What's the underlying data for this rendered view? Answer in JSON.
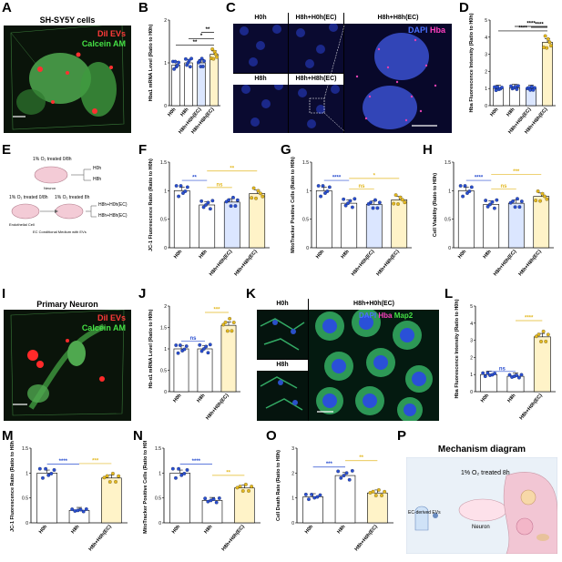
{
  "letters": {
    "A": "A",
    "B": "B",
    "C": "C",
    "D": "D",
    "E": "E",
    "F": "F",
    "G": "G",
    "H": "H",
    "I": "I",
    "J": "J",
    "K": "K",
    "L": "L",
    "M": "M",
    "N": "N",
    "O": "O",
    "P": "P"
  },
  "panelA": {
    "title": "SH-SY5Y cells",
    "label1": "DiI EVs",
    "label2": "Calcein AM"
  },
  "panelC": {
    "tl": "H0h",
    "tr": "H8h+H0h(EC)",
    "bl": "H8h",
    "br": "H8h+H8h(EC)",
    "big": "H8h+H8h(EC)",
    "legend_dapi": "DAPI",
    "legend_hba": "Hba"
  },
  "panelE": {
    "top_label": "1% O₂ treated 0/8h",
    "top_outcomes": [
      "H0h",
      "H8h"
    ],
    "left_label": "1% O₂ treated 0/8h",
    "right_label": "1% O₂ treated 8h",
    "bottom_outcomes": [
      "H8h+H0h(EC)",
      "H8h+H8h(EC)"
    ],
    "neuron": "Neuron",
    "endothelial": "Endothelial Cell",
    "medium": "EC Conditional Medium with EVs"
  },
  "panelI": {
    "title": "Primary Neuron",
    "label1": "DiI EVs",
    "label2": "Calcein AM"
  },
  "panelK": {
    "h0": "H0h",
    "h8": "H8h",
    "big": "H8h+H0h(EC)",
    "legend_dapi": "DAPI",
    "legend_hba": "Hba",
    "legend_map2": "Map2"
  },
  "panelP": {
    "title": "Mechanism diagram",
    "treatment": "1% O₂ treated 8h",
    "evs": "EC-derived EVs",
    "neuron": "Neuron"
  },
  "charts": [
    {
      "id": "B",
      "ylabel": "Hba1 mRNA Level (Ratio to H0h)",
      "ylim": [
        0,
        2
      ],
      "yticks": [
        0,
        1,
        2
      ],
      "categories": [
        "H0h",
        "H8h",
        "H8h+H0h(EC)",
        "H8h+H8h(EC)"
      ],
      "values": [
        0.95,
        1.0,
        1.0,
        1.2
      ],
      "sig": [
        {
          "from": 0,
          "to": 3,
          "text": "**",
          "color": "#000000"
        },
        {
          "from": 1,
          "to": 3,
          "text": "*",
          "color": "#000000"
        },
        {
          "from": 2,
          "to": 3,
          "text": "**",
          "color": "#000000"
        }
      ]
    },
    {
      "id": "D",
      "ylabel": "Hba Fluorescence Intensity (Ratio to H0h)",
      "ylim": [
        0,
        5
      ],
      "yticks": [
        0,
        1,
        2,
        3,
        4,
        5
      ],
      "categories": [
        "H0h",
        "H8h",
        "H8h+H0h(EC)",
        "H8h+H8h(EC)"
      ],
      "values": [
        1.0,
        1.05,
        1.0,
        3.7
      ],
      "sig": [
        {
          "from": 0,
          "to": 3,
          "text": "****",
          "color": "#000000"
        },
        {
          "from": 1,
          "to": 3,
          "text": "****",
          "color": "#000000"
        },
        {
          "from": 2,
          "to": 3,
          "text": "****",
          "color": "#000000"
        }
      ]
    },
    {
      "id": "F",
      "ylabel": "JC-1 Fluorescence Ratio (Ratio to H0h)",
      "ylim": [
        0,
        1.5
      ],
      "yticks": [
        0,
        0.5,
        1.0,
        1.5
      ],
      "categories": [
        "H0h",
        "H8h",
        "H8h+H0h(EC)",
        "H8h+H8h(EC)"
      ],
      "values": [
        1.0,
        0.75,
        0.8,
        0.95
      ],
      "sig": [
        {
          "from": 0,
          "to": 1,
          "text": "**",
          "color": "#2a4fd0"
        },
        {
          "from": 1,
          "to": 2,
          "text": "ns",
          "color": "#e3b820"
        },
        {
          "from": 1,
          "to": 3,
          "text": "**",
          "color": "#e3b820"
        }
      ]
    },
    {
      "id": "G",
      "ylabel": "MitoTracker Positive Cells (Ratio to H0h)",
      "ylim": [
        0,
        1.5
      ],
      "yticks": [
        0,
        0.5,
        1.0,
        1.5
      ],
      "categories": [
        "H0h",
        "H8h",
        "H8h+H0h(EC)",
        "H8h+H8h(EC)"
      ],
      "values": [
        1.0,
        0.78,
        0.76,
        0.84
      ],
      "sig": [
        {
          "from": 0,
          "to": 1,
          "text": "****",
          "color": "#2a4fd0"
        },
        {
          "from": 1,
          "to": 2,
          "text": "ns",
          "color": "#e3b820"
        },
        {
          "from": 1,
          "to": 3,
          "text": "*",
          "color": "#e3b820"
        }
      ]
    },
    {
      "id": "H",
      "ylabel": "Cell Viability (Ratio to H0h)",
      "ylim": [
        0,
        1.5
      ],
      "yticks": [
        0,
        0.5,
        1.0,
        1.5
      ],
      "categories": [
        "H0h",
        "H8h",
        "H8h+H0h(EC)",
        "H8h+H8h(EC)"
      ],
      "values": [
        1.0,
        0.76,
        0.78,
        0.9
      ],
      "sig": [
        {
          "from": 0,
          "to": 1,
          "text": "****",
          "color": "#2a4fd0"
        },
        {
          "from": 1,
          "to": 2,
          "text": "ns",
          "color": "#e3b820"
        },
        {
          "from": 1,
          "to": 3,
          "text": "***",
          "color": "#e3b820"
        }
      ]
    },
    {
      "id": "J",
      "ylabel": "Hb-α1 mRNA Level (Ratio to H0h)",
      "ylim": [
        0,
        2.0
      ],
      "yticks": [
        0,
        0.5,
        1.0,
        1.5,
        2.0
      ],
      "categories": [
        "H0h",
        "H8h",
        "H8h+H0h(EC)"
      ],
      "values": [
        1.0,
        1.0,
        1.55
      ],
      "sig": [
        {
          "from": 0,
          "to": 1,
          "text": "ns",
          "color": "#2a4fd0"
        },
        {
          "from": 1,
          "to": 2,
          "text": "***",
          "color": "#e3b820"
        }
      ]
    },
    {
      "id": "L",
      "ylabel": "Hba Fluorescence Intensity (Ratio to H0h)",
      "ylim": [
        0,
        5
      ],
      "yticks": [
        0,
        1,
        2,
        3,
        4,
        5
      ],
      "categories": [
        "H0h",
        "H8h",
        "H8h+H0h(EC)"
      ],
      "values": [
        1.0,
        0.9,
        3.2
      ],
      "sig": [
        {
          "from": 0,
          "to": 1,
          "text": "ns",
          "color": "#2a4fd0"
        },
        {
          "from": 1,
          "to": 2,
          "text": "****",
          "color": "#e3b820"
        }
      ]
    },
    {
      "id": "M",
      "ylabel": "JC-1 Fluorescence Ratio (Ratio to H0h)",
      "ylim": [
        0,
        1.5
      ],
      "yticks": [
        0,
        0.5,
        1.0,
        1.5
      ],
      "categories": [
        "H0h",
        "H8h",
        "H8h+H0h(EC)"
      ],
      "values": [
        1.0,
        0.25,
        0.9
      ],
      "sig": [
        {
          "from": 0,
          "to": 1,
          "text": "****",
          "color": "#2a4fd0"
        },
        {
          "from": 1,
          "to": 2,
          "text": "***",
          "color": "#e3b820"
        }
      ]
    },
    {
      "id": "N",
      "ylabel": "MitoTracker Positive Cells (Ratio to H0h)",
      "ylim": [
        0,
        1.5
      ],
      "yticks": [
        0,
        0.5,
        1.0,
        1.5
      ],
      "categories": [
        "H0h",
        "H8h",
        "H8h+H0h(EC)"
      ],
      "values": [
        1.0,
        0.45,
        0.7
      ],
      "sig": [
        {
          "from": 0,
          "to": 1,
          "text": "****",
          "color": "#2a4fd0"
        },
        {
          "from": 1,
          "to": 2,
          "text": "**",
          "color": "#e3b820"
        }
      ]
    },
    {
      "id": "O",
      "ylabel": "Cell Death Rate (Ratio to H0h)",
      "ylim": [
        0,
        3
      ],
      "yticks": [
        0,
        1,
        2,
        3
      ],
      "categories": [
        "H0h",
        "H8h",
        "H8h+H0h(EC)"
      ],
      "values": [
        1.05,
        1.9,
        1.2
      ],
      "sig": [
        {
          "from": 0,
          "to": 1,
          "text": "***",
          "color": "#2a4fd0"
        },
        {
          "from": 1,
          "to": 2,
          "text": "**",
          "color": "#e3b820"
        }
      ]
    }
  ],
  "colors": {
    "bar1": "#ffffff",
    "bar2": "#ffffff",
    "bar3": "#dbe6ff",
    "bar4": "#fff3c8",
    "dot_blue": "#2a4fd0",
    "dot_gold": "#e3b820"
  }
}
